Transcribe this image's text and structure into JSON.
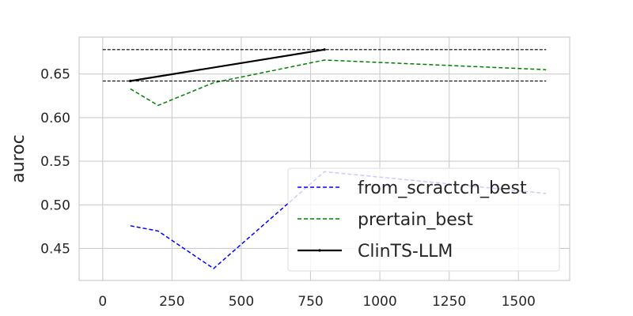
{
  "chart_data": {
    "type": "line",
    "title": "",
    "xlabel": "",
    "ylabel": "auroc",
    "xlim": [
      -85,
      1685
    ],
    "ylim": [
      0.4133,
      0.6923
    ],
    "x_ticks": [
      0,
      250,
      500,
      750,
      1000,
      1250,
      1500
    ],
    "y_ticks": [
      0.45,
      0.5,
      0.55,
      0.6,
      0.65
    ],
    "x_tick_labels": [
      "0",
      "250",
      "500",
      "750",
      "1000",
      "1250",
      "1500"
    ],
    "y_tick_labels": [
      "0.45",
      "0.50",
      "0.55",
      "0.60",
      "0.65"
    ],
    "grid": true,
    "legend_position": "lower-right",
    "series": [
      {
        "name": "from_scractch_best",
        "style": "dashed",
        "color": "#0000ff",
        "x": [
          100,
          200,
          400,
          800,
          1600
        ],
        "y": [
          0.476,
          0.47,
          0.427,
          0.538,
          0.513
        ]
      },
      {
        "name": "pretrain_best",
        "style": "dashed",
        "color": "#008000",
        "x": [
          100,
          200,
          400,
          800,
          1600
        ],
        "y": [
          0.633,
          0.614,
          0.64,
          0.666,
          0.655
        ]
      },
      {
        "name": "ClinTS-LLM",
        "style": "solid",
        "color": "#000000",
        "x": [
          100,
          800
        ],
        "y": [
          0.642,
          0.678
        ]
      }
    ],
    "reference_lines": [
      {
        "y": 0.678,
        "x_from": 0,
        "x_to": 1600,
        "style": "dashed",
        "color": "#000000"
      },
      {
        "y": 0.642,
        "x_from": 0,
        "x_to": 1600,
        "style": "dashed",
        "color": "#000000"
      }
    ],
    "legend_labels": [
      "from_scractch_best",
      "prertain_best",
      "ClinTS-LLM"
    ]
  }
}
